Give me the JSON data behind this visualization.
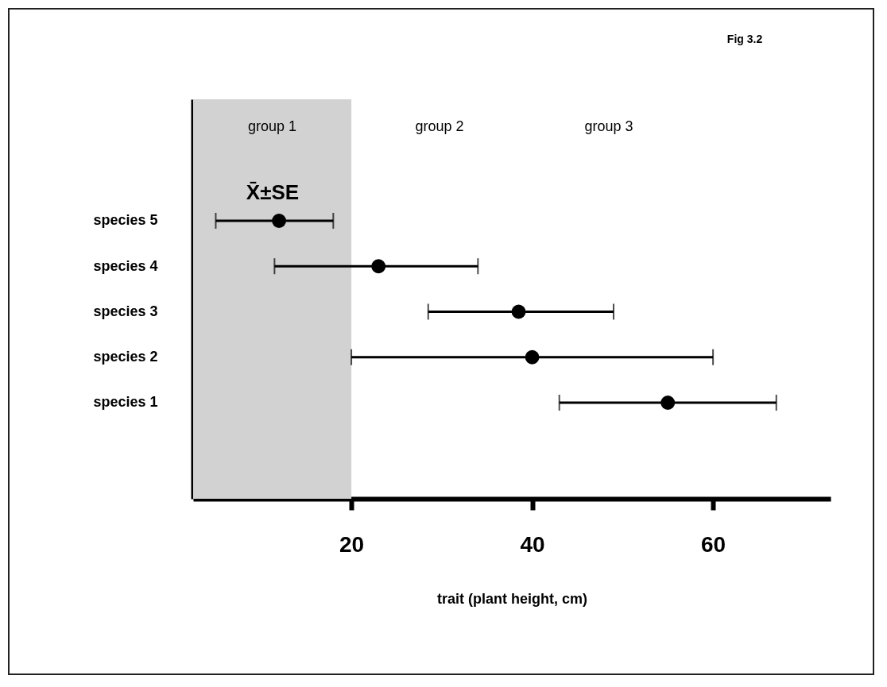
{
  "chart_data": {
    "type": "scatter",
    "orientation": "horizontal",
    "marker": "circle",
    "color": "#000000",
    "categories": [
      "species 5",
      "species 4",
      "species 3",
      "species 2",
      "species 1"
    ],
    "values": [
      12,
      23,
      38.5,
      40,
      55
    ],
    "errors": [
      [
        5,
        18
      ],
      [
        11.5,
        34
      ],
      [
        28.5,
        49
      ],
      [
        20,
        60
      ],
      [
        43,
        67
      ]
    ],
    "xlim": [
      2.5,
      73
    ],
    "xticks": [
      20,
      40,
      60
    ],
    "xlabel": "trait (plant height, cm)",
    "bands": [
      {
        "axis": "x",
        "from": 2.5,
        "to": 20,
        "label": "group 1",
        "color": "#d2d2d2"
      }
    ],
    "annotations": [
      "Fig 3.2",
      "X̄±SE",
      "group 2",
      "group 3"
    ],
    "grid": false
  }
}
